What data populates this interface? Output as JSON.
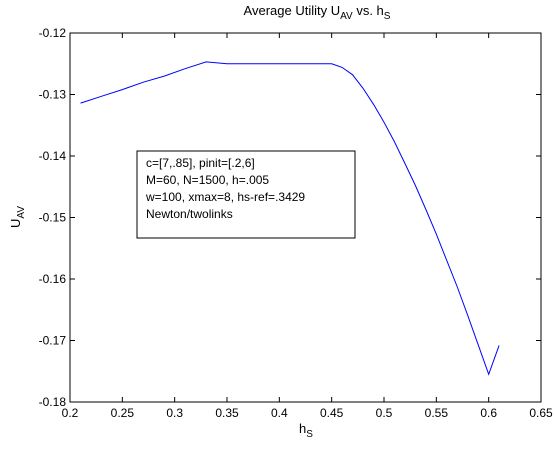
{
  "chart_data": {
    "type": "line",
    "title": {
      "main": "Average Utility U",
      "sub": "AV",
      "mid": " vs. h",
      "sub2": "S"
    },
    "xlabel": {
      "main": "h",
      "sub": "S"
    },
    "ylabel": {
      "main": "U",
      "sub": "AV"
    },
    "xlim": [
      0.2,
      0.65
    ],
    "ylim": [
      -0.18,
      -0.12
    ],
    "x_ticks": [
      0.2,
      0.25,
      0.3,
      0.35,
      0.4,
      0.45,
      0.5,
      0.55,
      0.6,
      0.65
    ],
    "y_ticks": [
      -0.12,
      -0.13,
      -0.14,
      -0.15,
      -0.16,
      -0.17,
      -0.18
    ],
    "x_tick_labels": [
      "0.2",
      "0.25",
      "0.3",
      "0.35",
      "0.4",
      "0.45",
      "0.5",
      "0.55",
      "0.6",
      "0.65"
    ],
    "y_tick_labels": [
      "-0.12",
      "-0.13",
      "-0.14",
      "-0.15",
      "-0.16",
      "-0.17",
      "-0.18"
    ],
    "grid": false,
    "series": [
      {
        "color": "#0000ff",
        "x": [
          0.21,
          0.23,
          0.25,
          0.27,
          0.29,
          0.31,
          0.33,
          0.35,
          0.37,
          0.39,
          0.41,
          0.43,
          0.45,
          0.46,
          0.47,
          0.48,
          0.49,
          0.5,
          0.51,
          0.52,
          0.53,
          0.54,
          0.55,
          0.56,
          0.57,
          0.58,
          0.59,
          0.6,
          0.61
        ],
        "y": [
          -0.1314,
          -0.1303,
          -0.1292,
          -0.128,
          -0.127,
          -0.1258,
          -0.1247,
          -0.125,
          -0.125,
          -0.125,
          -0.125,
          -0.125,
          -0.125,
          -0.1256,
          -0.1268,
          -0.129,
          -0.1316,
          -0.1345,
          -0.1377,
          -0.1412,
          -0.1448,
          -0.1487,
          -0.1527,
          -0.157,
          -0.1613,
          -0.1659,
          -0.1707,
          -0.1755,
          -0.1708
        ]
      }
    ],
    "annotation_lines": [
      "c=[7,.85], pinit=[.2,6]",
      "M=60, N=1500, h=.005",
      "w=100, xmax=8, hs-ref=.3429",
      "Newton/twolinks"
    ]
  }
}
